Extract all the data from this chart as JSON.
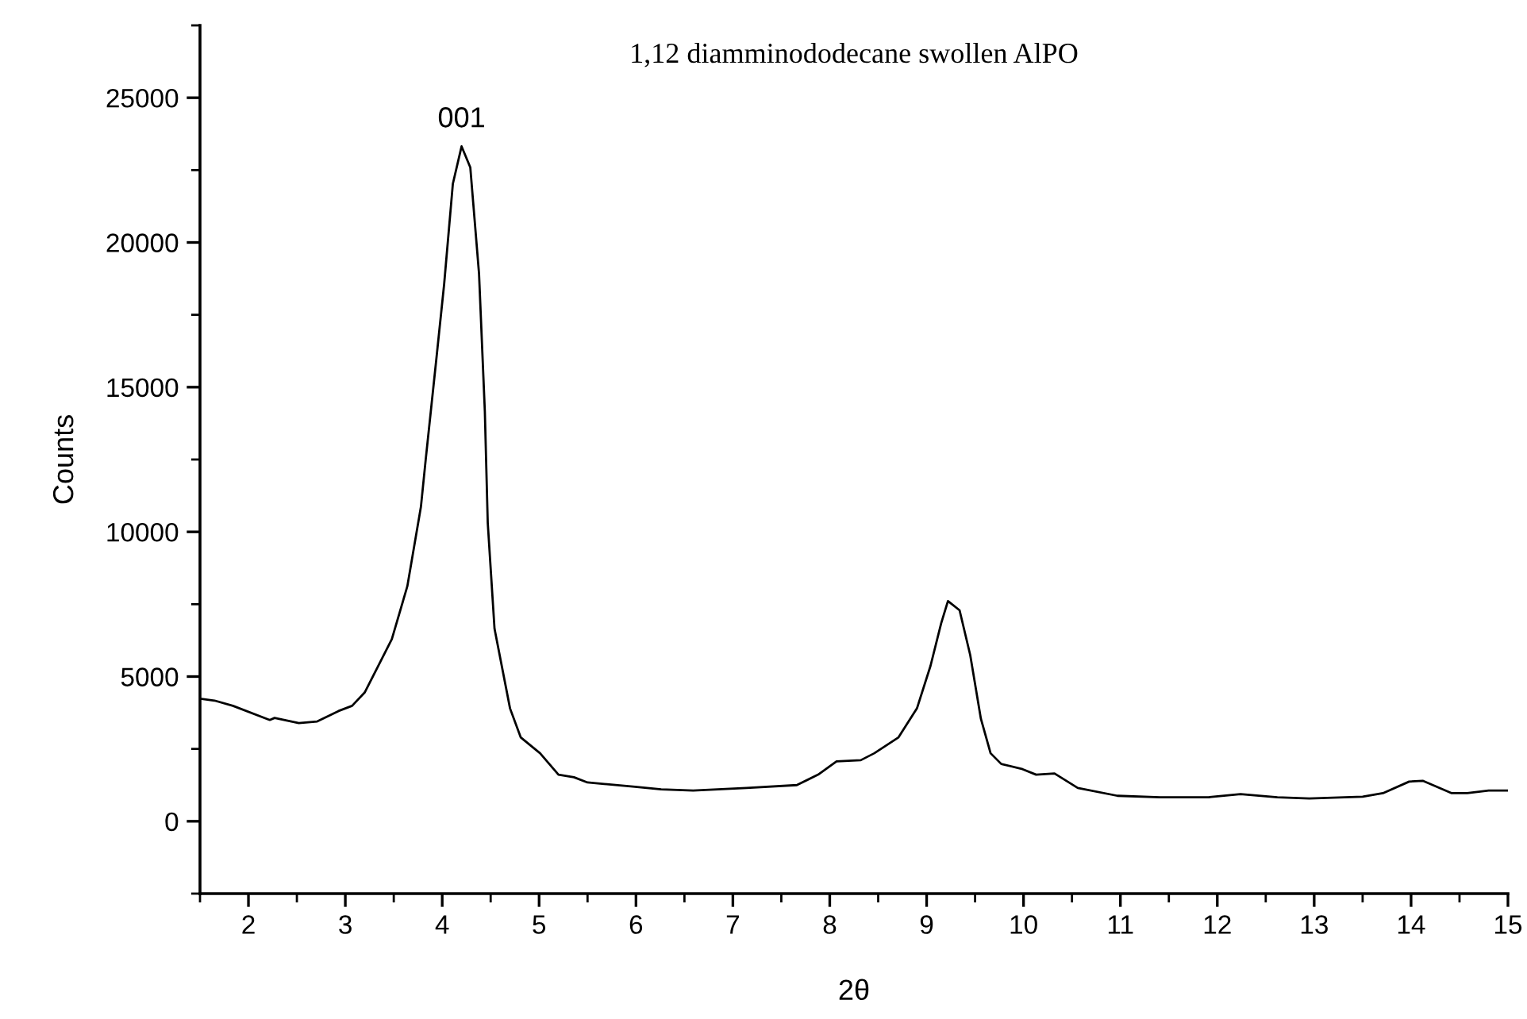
{
  "chart_data": {
    "type": "line",
    "title": "1,12 diamminododecane swollen AlPO",
    "xlabel": "2θ",
    "ylabel": "Counts",
    "annotations": [
      {
        "text": "001",
        "x": 4.2,
        "y": 23320
      }
    ],
    "xlim": [
      1.5,
      15
    ],
    "xticks": [
      2,
      3,
      4,
      5,
      6,
      7,
      8,
      9,
      10,
      11,
      12,
      13,
      14,
      15
    ],
    "ylim": [
      -2500,
      27500
    ],
    "yticks": [
      0,
      5000,
      10000,
      15000,
      20000,
      25000
    ],
    "marker": "none",
    "line_style": "solid",
    "series": [
      {
        "color": "#000000",
        "x": [
          1.51,
          1.65,
          1.84,
          2.22,
          2.27,
          2.52,
          2.71,
          2.93,
          3.07,
          3.2,
          3.48,
          3.64,
          3.78,
          3.83,
          3.94,
          4.02,
          4.11,
          4.2,
          4.29,
          4.38,
          4.44,
          4.47,
          4.54,
          4.7,
          4.81,
          5.01,
          5.2,
          5.36,
          5.5,
          5.99,
          6.26,
          6.59,
          7.14,
          7.66,
          7.88,
          8.07,
          8.32,
          8.46,
          8.71,
          8.9,
          9.04,
          9.15,
          9.22,
          9.34,
          9.45,
          9.56,
          9.66,
          9.77,
          9.99,
          10.13,
          10.32,
          10.56,
          10.97,
          11.41,
          11.91,
          12.24,
          12.62,
          12.95,
          13.5,
          13.71,
          13.98,
          14.12,
          14.42,
          14.58,
          14.8,
          15.0
        ],
        "values": [
          4230,
          4170,
          3990,
          3500,
          3570,
          3390,
          3450,
          3810,
          3990,
          4450,
          6290,
          8120,
          10860,
          12510,
          15990,
          18560,
          22030,
          23320,
          22590,
          18920,
          14160,
          10310,
          6650,
          3900,
          2900,
          2350,
          1610,
          1520,
          1340,
          1190,
          1100,
          1060,
          1150,
          1250,
          1610,
          2070,
          2110,
          2350,
          2900,
          3900,
          5370,
          6840,
          7610,
          7290,
          5740,
          3540,
          2350,
          1980,
          1800,
          1610,
          1650,
          1150,
          880,
          830,
          830,
          940,
          830,
          790,
          850,
          970,
          1370,
          1400,
          970,
          970,
          1060,
          1060
        ]
      }
    ]
  }
}
